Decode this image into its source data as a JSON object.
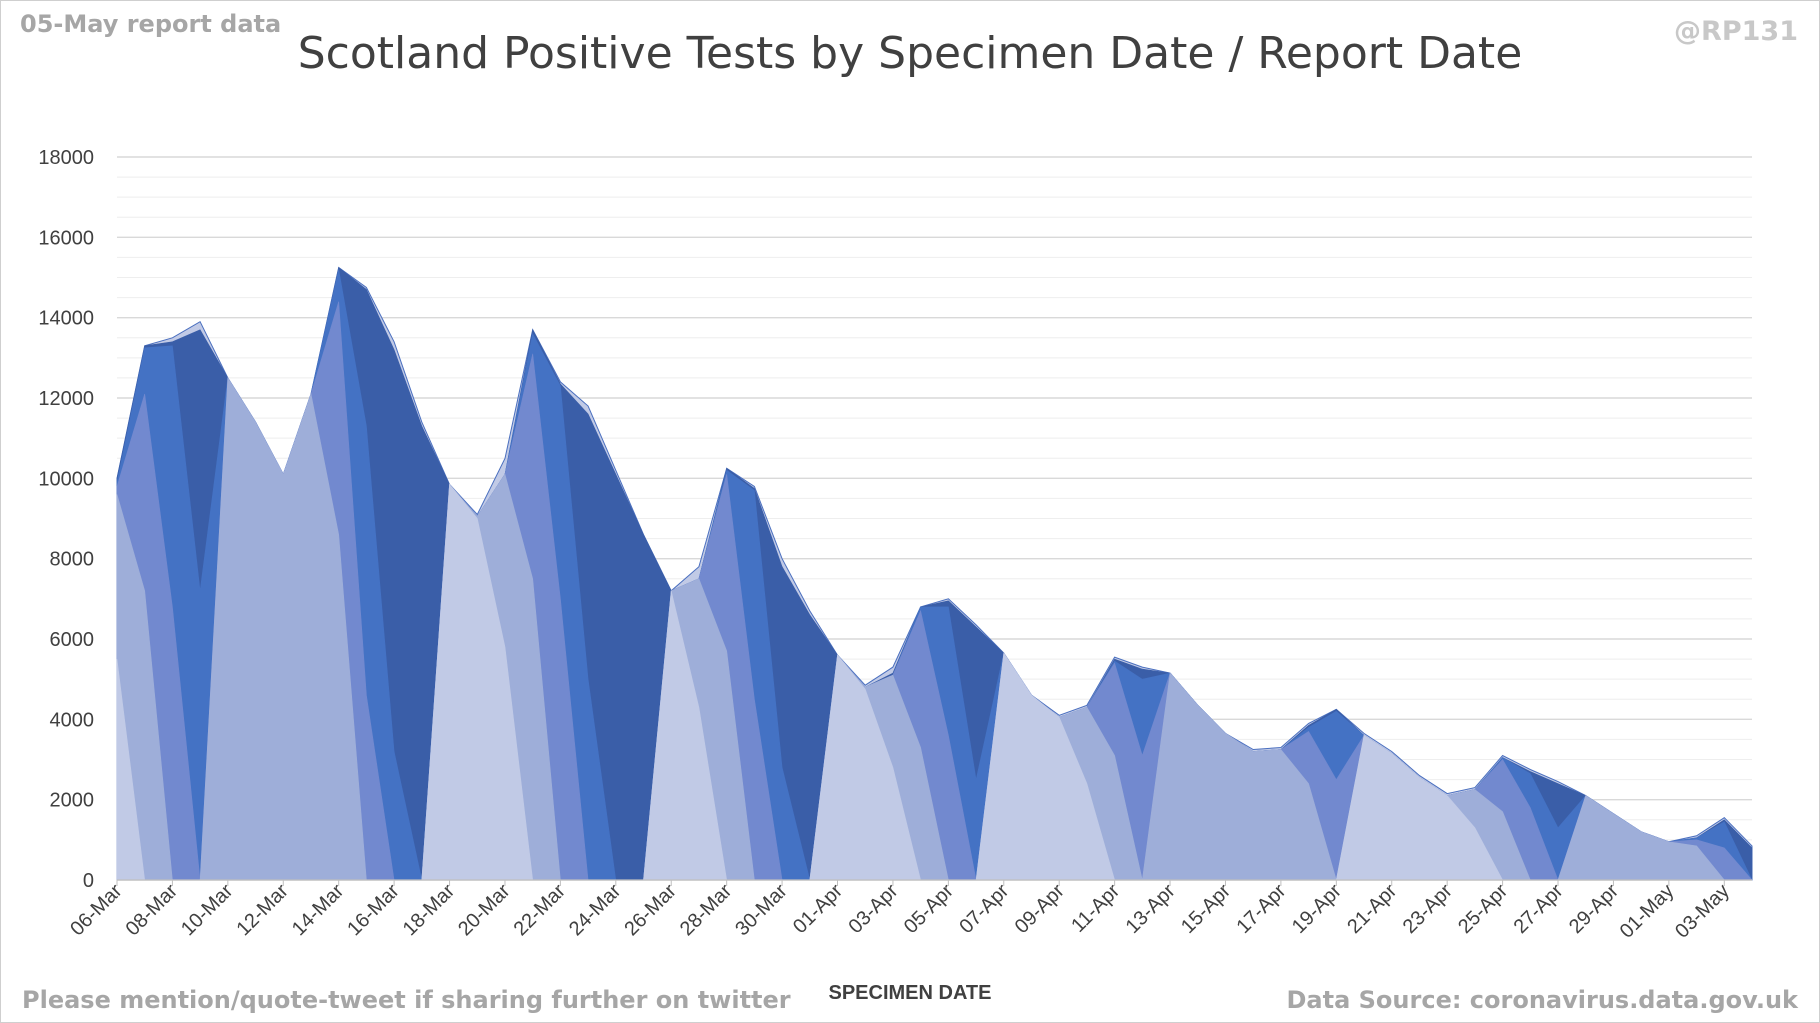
{
  "header": {
    "report_label": "05-May report data",
    "handle": "@RP131"
  },
  "footer": {
    "note": "Please mention/quote-tweet if sharing further on twitter",
    "source": "Data Source: coronavirus.data.gov.uk"
  },
  "colors": {
    "bands": [
      "#c1cae6",
      "#9eaed9",
      "#7289cf",
      "#4472c4",
      "#3a5ea8"
    ],
    "grid": "#d9d9d9",
    "minor_grid": "#eeeeee"
  },
  "chart_data": {
    "type": "area",
    "title": "Scotland Positive Tests by Specimen Date / Report Date",
    "xlabel": "SPECIMEN DATE",
    "ylabel": "",
    "ylim": [
      0,
      18000
    ],
    "yticks": [
      0,
      2000,
      4000,
      6000,
      8000,
      10000,
      12000,
      14000,
      16000,
      18000
    ],
    "grid": true,
    "legend": "none",
    "x": [
      "06-Mar",
      "07-Mar",
      "08-Mar",
      "09-Mar",
      "10-Mar",
      "11-Mar",
      "12-Mar",
      "13-Mar",
      "14-Mar",
      "15-Mar",
      "16-Mar",
      "17-Mar",
      "18-Mar",
      "19-Mar",
      "20-Mar",
      "21-Mar",
      "22-Mar",
      "23-Mar",
      "24-Mar",
      "25-Mar",
      "26-Mar",
      "27-Mar",
      "28-Mar",
      "29-Mar",
      "30-Mar",
      "31-Mar",
      "01-Apr",
      "02-Apr",
      "03-Apr",
      "04-Apr",
      "05-Apr",
      "06-Apr",
      "07-Apr",
      "08-Apr",
      "09-Apr",
      "10-Apr",
      "11-Apr",
      "12-Apr",
      "13-Apr",
      "14-Apr",
      "15-Apr",
      "16-Apr",
      "17-Apr",
      "18-Apr",
      "19-Apr",
      "20-Apr",
      "21-Apr",
      "22-Apr",
      "23-Apr",
      "24-Apr",
      "25-Apr",
      "26-Apr",
      "27-Apr",
      "28-Apr",
      "29-Apr",
      "30-Apr",
      "01-May",
      "02-May",
      "03-May",
      "04-May"
    ],
    "xtick_labels": [
      "06-Mar",
      "08-Mar",
      "10-Mar",
      "12-Mar",
      "14-Mar",
      "16-Mar",
      "18-Mar",
      "20-Mar",
      "22-Mar",
      "24-Mar",
      "26-Mar",
      "28-Mar",
      "30-Mar",
      "01-Apr",
      "03-Apr",
      "05-Apr",
      "07-Apr",
      "09-Apr",
      "11-Apr",
      "13-Apr",
      "15-Apr",
      "17-Apr",
      "19-Apr",
      "21-Apr",
      "23-Apr",
      "25-Apr",
      "27-Apr",
      "29-Apr",
      "01-May",
      "03-May"
    ],
    "total": [
      10000,
      13300,
      13500,
      13900,
      12500,
      11400,
      10100,
      12100,
      15250,
      14750,
      13400,
      11400,
      9850,
      9100,
      10500,
      13700,
      12400,
      11800,
      10200,
      8600,
      7200,
      7800,
      10250,
      9800,
      8000,
      6700,
      5600,
      4850,
      5300,
      6800,
      7000,
      6350,
      5650,
      4600,
      4100,
      4350,
      5550,
      5300,
      5150,
      4350,
      3650,
      3250,
      3300,
      3900,
      4250,
      3650,
      3200,
      2600,
      2150,
      2300,
      3100,
      2750,
      2450,
      2100,
      1650,
      1200,
      950,
      1100,
      1550,
      850
    ],
    "layers": [
      [
        5500,
        0,
        0,
        0,
        0,
        0,
        0,
        0,
        0,
        0,
        0,
        0,
        9850,
        9000,
        5800,
        0,
        0,
        0,
        0,
        0,
        7200,
        4300,
        0,
        0,
        0,
        0,
        5600,
        4750,
        2800,
        0,
        0,
        0,
        5650,
        4600,
        4050,
        2400,
        0,
        0,
        0,
        0,
        0,
        0,
        0,
        0,
        0,
        3600,
        3150,
        2550,
        2100,
        1300,
        0,
        0,
        0,
        0,
        0,
        0,
        0,
        0,
        0,
        0
      ],
      [
        9600,
        7200,
        0,
        0,
        12500,
        11400,
        10100,
        12100,
        8600,
        0,
        0,
        0,
        9850,
        9050,
        10100,
        7500,
        0,
        0,
        0,
        0,
        7200,
        7500,
        5700,
        0,
        0,
        0,
        5600,
        4800,
        5100,
        3300,
        0,
        0,
        5650,
        4600,
        4050,
        4300,
        3100,
        0,
        5150,
        4350,
        3650,
        3200,
        3250,
        2400,
        0,
        3600,
        3150,
        2550,
        2100,
        2250,
        1700,
        0,
        0,
        2100,
        1650,
        1200,
        950,
        850,
        0,
        0
      ],
      [
        9800,
        12100,
        6800,
        0,
        12500,
        11400,
        10100,
        12100,
        14400,
        4600,
        0,
        0,
        9850,
        9050,
        10100,
        13100,
        7000,
        0,
        0,
        0,
        7200,
        7500,
        10100,
        4500,
        0,
        0,
        5600,
        4800,
        5100,
        6700,
        3600,
        0,
        5650,
        4600,
        4050,
        4300,
        5400,
        3100,
        5150,
        4350,
        3650,
        3200,
        3250,
        3700,
        2500,
        3600,
        3150,
        2550,
        2100,
        2250,
        3000,
        1800,
        0,
        2100,
        1650,
        1200,
        950,
        1000,
        800,
        0
      ],
      [
        9900,
        13250,
        13300,
        7200,
        12500,
        11400,
        10100,
        12100,
        15200,
        11300,
        3200,
        0,
        9850,
        9050,
        10100,
        13600,
        12300,
        5000,
        0,
        0,
        7200,
        7500,
        10200,
        9700,
        2800,
        0,
        5600,
        4800,
        5100,
        6800,
        6800,
        2500,
        5650,
        4600,
        4050,
        4300,
        5450,
        5000,
        5150,
        4350,
        3650,
        3200,
        3250,
        3800,
        4200,
        3600,
        3150,
        2550,
        2100,
        2250,
        3050,
        2650,
        1300,
        2100,
        1650,
        1200,
        950,
        1050,
        1450,
        0
      ],
      [
        10000,
        13300,
        13400,
        13700,
        12500,
        11400,
        10100,
        12100,
        15250,
        14700,
        13200,
        11300,
        9850,
        9050,
        10100,
        13700,
        12350,
        11600,
        10100,
        8600,
        7200,
        7500,
        10250,
        9750,
        7800,
        6600,
        5600,
        4800,
        5150,
        6800,
        6950,
        6300,
        5650,
        4600,
        4050,
        4300,
        5500,
        5250,
        5150,
        4350,
        3650,
        3200,
        3250,
        3850,
        4250,
        3600,
        3150,
        2550,
        2100,
        2250,
        3050,
        2700,
        2400,
        2100,
        1650,
        1200,
        950,
        1050,
        1500,
        800
      ]
    ]
  }
}
